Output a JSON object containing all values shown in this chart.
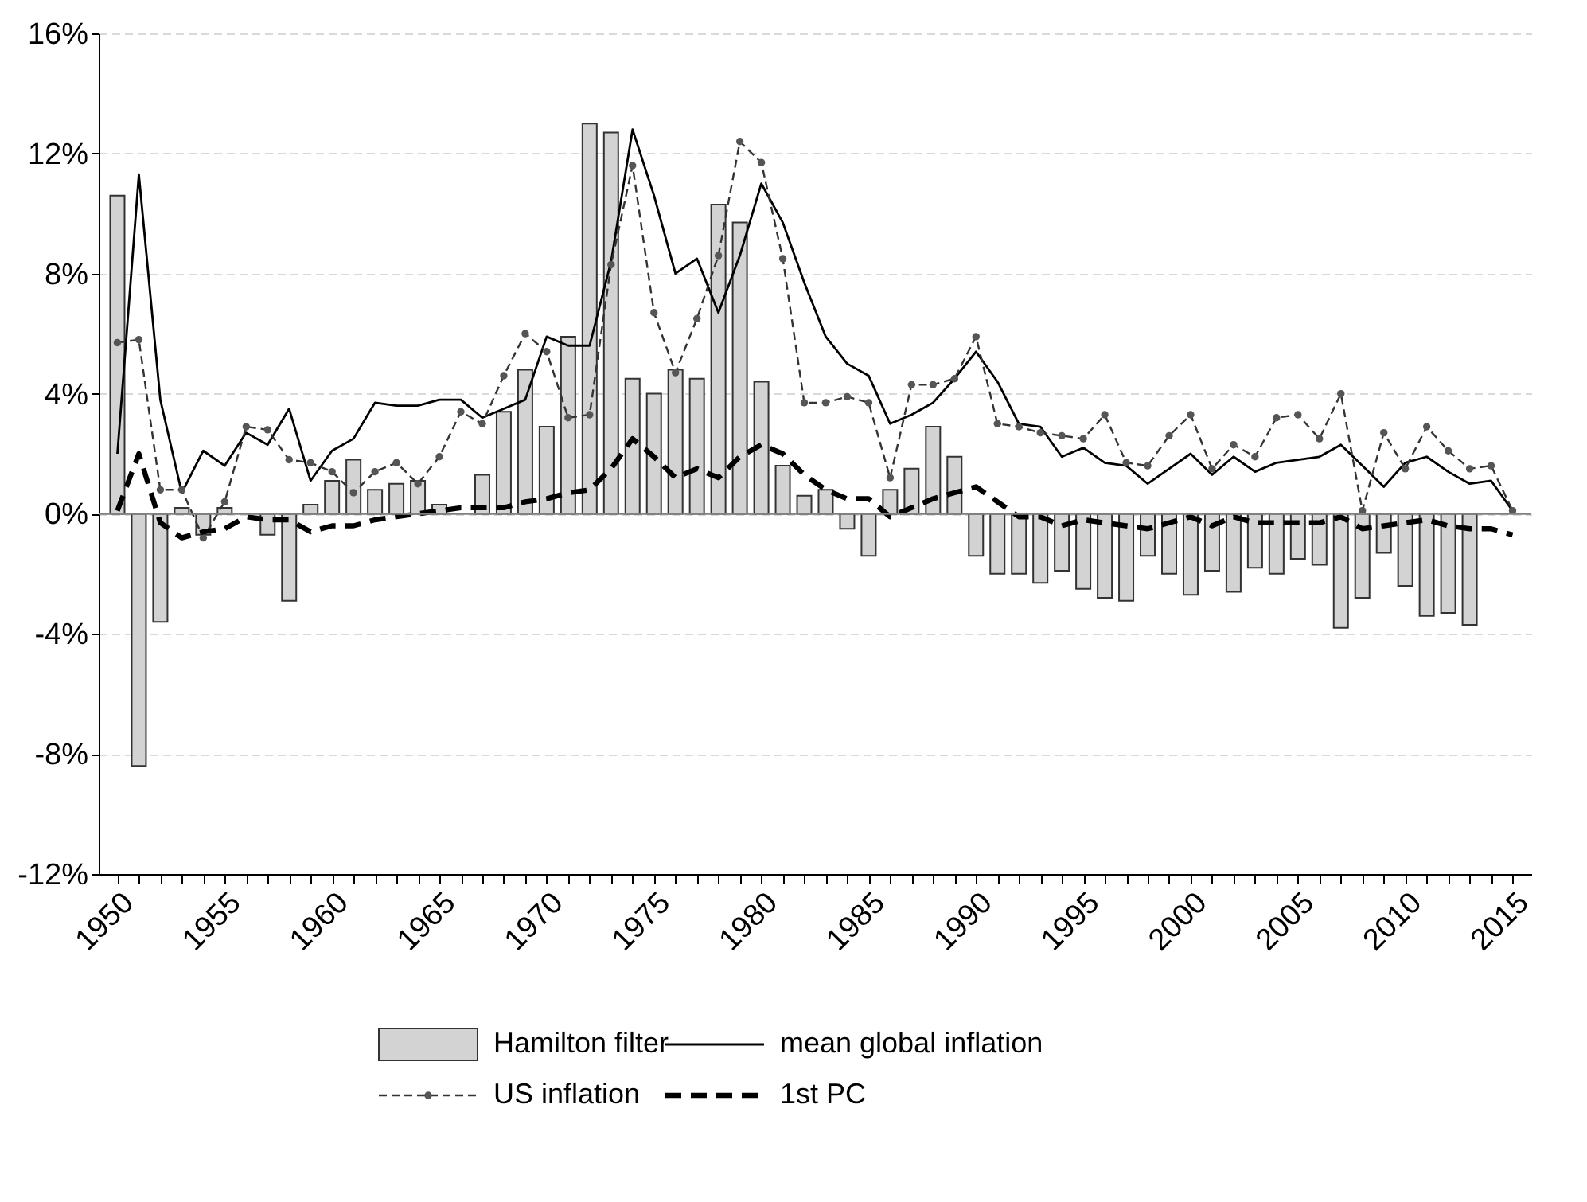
{
  "chart_data": {
    "type": "bar",
    "x": [
      1950,
      1951,
      1952,
      1953,
      1954,
      1955,
      1956,
      1957,
      1958,
      1959,
      1960,
      1961,
      1962,
      1963,
      1964,
      1965,
      1966,
      1967,
      1968,
      1969,
      1970,
      1971,
      1972,
      1973,
      1974,
      1975,
      1976,
      1977,
      1978,
      1979,
      1980,
      1981,
      1982,
      1983,
      1984,
      1985,
      1986,
      1987,
      1988,
      1989,
      1990,
      1991,
      1992,
      1993,
      1994,
      1995,
      1996,
      1997,
      1998,
      1999,
      2000,
      2001,
      2002,
      2003,
      2004,
      2005,
      2006,
      2007,
      2008,
      2009,
      2010,
      2011,
      2012,
      2013,
      2014,
      2015
    ],
    "series": [
      {
        "name": "Hamilton filter",
        "color": "#d3d3d3",
        "values": [
          10.6,
          -8.4,
          -3.6,
          0.2,
          -0.7,
          0.2,
          null,
          -0.7,
          -2.9,
          0.3,
          1.1,
          1.8,
          0.8,
          1.0,
          1.1,
          0.3,
          null,
          1.3,
          3.4,
          4.8,
          2.9,
          5.9,
          13.0,
          12.7,
          4.5,
          4.0,
          4.8,
          4.5,
          10.3,
          9.7,
          4.4,
          1.6,
          0.6,
          0.8,
          -0.5,
          -1.4,
          0.8,
          1.5,
          2.9,
          1.9,
          -1.4,
          -2.0,
          -2.0,
          -2.3,
          -1.9,
          -2.5,
          -2.8,
          -2.9,
          -1.4,
          -2.0,
          -2.7,
          -1.9,
          -2.6,
          -1.8,
          -2.0,
          -1.5,
          -1.7,
          -3.8,
          -2.8,
          -1.3,
          -2.4,
          -3.4,
          -3.3,
          -3.7,
          null,
          null
        ]
      },
      {
        "name": "mean global inflation",
        "type": "line",
        "color": "#000000",
        "line_style": "solid",
        "marker": "none",
        "values": [
          2.0,
          11.3,
          3.8,
          0.7,
          2.1,
          1.6,
          2.7,
          2.3,
          3.5,
          1.1,
          2.1,
          2.5,
          3.7,
          3.6,
          3.6,
          3.8,
          3.8,
          3.2,
          3.5,
          3.8,
          5.9,
          5.6,
          5.6,
          8.4,
          12.8,
          10.6,
          8.0,
          8.5,
          6.7,
          8.6,
          11.0,
          9.7,
          7.7,
          5.9,
          5.0,
          4.6,
          3.0,
          3.3,
          3.7,
          4.5,
          5.4,
          4.4,
          3.0,
          2.9,
          1.9,
          2.2,
          1.7,
          1.6,
          1.0,
          1.5,
          2.0,
          1.3,
          1.9,
          1.4,
          1.7,
          1.8,
          1.9,
          2.3,
          1.6,
          0.9,
          1.7,
          1.9,
          1.4,
          1.0,
          1.1,
          0.1
        ]
      },
      {
        "name": "US inflation",
        "type": "line",
        "color": "#333333",
        "line_style": "dashed",
        "marker": "circle",
        "values": [
          5.7,
          5.8,
          0.8,
          0.8,
          -0.8,
          0.4,
          2.9,
          2.8,
          1.8,
          1.7,
          1.4,
          0.7,
          1.4,
          1.7,
          1.0,
          1.9,
          3.4,
          3.0,
          4.6,
          6.0,
          5.4,
          3.2,
          3.3,
          8.3,
          11.6,
          6.7,
          4.7,
          6.5,
          8.6,
          12.4,
          11.7,
          8.5,
          3.7,
          3.7,
          3.9,
          3.7,
          1.2,
          4.3,
          4.3,
          4.5,
          5.9,
          3.0,
          2.9,
          2.7,
          2.6,
          2.5,
          3.3,
          1.7,
          1.6,
          2.6,
          3.3,
          1.5,
          2.3,
          1.9,
          3.2,
          3.3,
          2.5,
          4.0,
          0.1,
          2.7,
          1.5,
          2.9,
          2.1,
          1.5,
          1.6,
          0.1
        ]
      },
      {
        "name": "1st PC",
        "type": "line",
        "color": "#000000",
        "line_style": "dashed",
        "marker": "none",
        "values": [
          0.1,
          2.0,
          -0.3,
          -0.8,
          -0.6,
          -0.5,
          -0.1,
          -0.2,
          -0.2,
          -0.6,
          -0.4,
          -0.4,
          -0.2,
          -0.1,
          0.0,
          0.1,
          0.2,
          0.2,
          0.2,
          0.4,
          0.5,
          0.7,
          0.8,
          1.5,
          2.5,
          1.9,
          1.2,
          1.5,
          1.2,
          1.9,
          2.3,
          2.0,
          1.3,
          0.8,
          0.5,
          0.5,
          -0.1,
          0.2,
          0.5,
          0.7,
          0.9,
          0.4,
          -0.1,
          -0.1,
          -0.4,
          -0.2,
          -0.3,
          -0.4,
          -0.5,
          -0.3,
          -0.1,
          -0.4,
          -0.1,
          -0.3,
          -0.3,
          -0.3,
          -0.3,
          -0.1,
          -0.5,
          -0.4,
          -0.3,
          -0.2,
          -0.4,
          -0.5,
          -0.5,
          -0.7
        ]
      }
    ],
    "xlim": [
      1949.5,
      2015.5
    ],
    "xticks": [
      1950,
      {
        "value": 1951,
        "label": null
      },
      {
        "value": 1952,
        "label": null
      },
      {
        "value": 1953,
        "label": null
      },
      {
        "value": 1954,
        "label": null
      },
      1955,
      {
        "value": 1956,
        "label": null
      },
      {
        "value": 1957,
        "label": null
      },
      {
        "value": 1958,
        "label": null
      },
      {
        "value": 1959,
        "label": null
      },
      1960,
      {
        "value": 1961,
        "label": null
      },
      {
        "value": 1962,
        "label": null
      },
      {
        "value": 1963,
        "label": null
      },
      {
        "value": 1964,
        "label": null
      },
      1965,
      {
        "value": 1966,
        "label": null
      },
      {
        "value": 1967,
        "label": null
      },
      {
        "value": 1968,
        "label": null
      },
      {
        "value": 1969,
        "label": null
      },
      1970,
      {
        "value": 1971,
        "label": null
      },
      {
        "value": 1972,
        "label": null
      },
      {
        "value": 1973,
        "label": null
      },
      {
        "value": 1974,
        "label": null
      },
      1975,
      {
        "value": 1976,
        "label": null
      },
      {
        "value": 1977,
        "label": null
      },
      {
        "value": 1978,
        "label": null
      },
      {
        "value": 1979,
        "label": null
      },
      1980,
      {
        "value": 1981,
        "label": null
      },
      {
        "value": 1982,
        "label": null
      },
      {
        "value": 1983,
        "label": null
      },
      {
        "value": 1984,
        "label": null
      },
      1985,
      {
        "value": 1986,
        "label": null
      },
      {
        "value": 1987,
        "label": null
      },
      {
        "value": 1988,
        "label": null
      },
      {
        "value": 1989,
        "label": null
      },
      1990,
      {
        "value": 1991,
        "label": null
      },
      {
        "value": 1992,
        "label": null
      },
      {
        "value": 1993,
        "label": null
      },
      {
        "value": 1994,
        "label": null
      },
      1995,
      {
        "value": 1996,
        "label": null
      },
      {
        "value": 1997,
        "label": null
      },
      {
        "value": 1998,
        "label": null
      },
      {
        "value": 1999,
        "label": null
      },
      2000,
      {
        "value": 2001,
        "label": null
      },
      {
        "value": 2002,
        "label": null
      },
      {
        "value": 2003,
        "label": null
      },
      {
        "value": 2004,
        "label": null
      },
      2005,
      {
        "value": 2006,
        "label": null
      },
      {
        "value": 2007,
        "label": null
      },
      {
        "value": 2008,
        "label": null
      },
      {
        "value": 2009,
        "label": null
      },
      2010,
      {
        "value": 2011,
        "label": null
      },
      {
        "value": 2012,
        "label": null
      },
      {
        "value": 2013,
        "label": null
      },
      {
        "value": 2014,
        "label": null
      },
      2015
    ],
    "ylim": [
      -12,
      16
    ],
    "yticks": [
      {
        "value": -12,
        "label": "-12%"
      },
      {
        "value": -8,
        "label": "-8%"
      },
      {
        "value": -4,
        "label": "-4%"
      },
      {
        "value": 0,
        "label": "0%"
      },
      {
        "value": 4,
        "label": "4%"
      },
      {
        "value": 8,
        "label": "8%"
      },
      {
        "value": 12,
        "label": "12%"
      },
      {
        "value": 16,
        "label": "16%"
      }
    ],
    "ref_lines": [
      {
        "axis": "y",
        "value": 0,
        "color": "#808080"
      }
    ],
    "grid": "y",
    "legend": "bottom"
  }
}
